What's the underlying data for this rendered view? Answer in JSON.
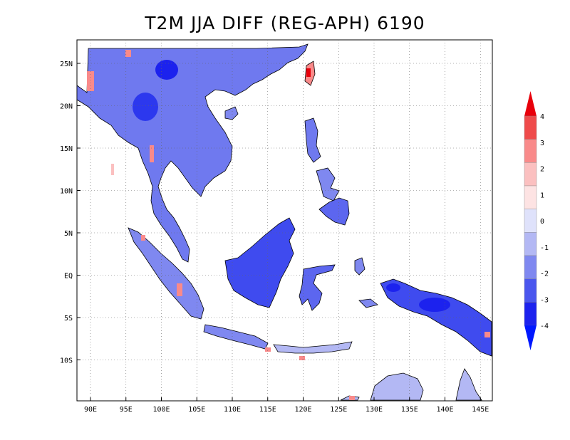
{
  "title": "T2M JJA DIFF (REG-APH) 6190",
  "lon_labels": [
    "90E",
    "95E",
    "100E",
    "105E",
    "110E",
    "115E",
    "120E",
    "125E",
    "130E",
    "135E",
    "140E",
    "145E"
  ],
  "lat_labels": [
    "25N",
    "20N",
    "15N",
    "10N",
    "5N",
    "EQ",
    "5S",
    "10S"
  ],
  "colorbar": {
    "labels": [
      "4",
      "3",
      "2",
      "1",
      "0",
      "-1",
      "-2",
      "-3",
      "-4"
    ],
    "colors": [
      "#e8000b",
      "#ef4b4b",
      "#f98a8a",
      "#fbc0c0",
      "#fde3e3",
      "#dfe2fb",
      "#b3b8f4",
      "#7f88f0",
      "#4a56ee",
      "#1c22ee",
      "#0018ff"
    ]
  },
  "colors": {
    "ocean": "#ffffff",
    "land_cool": "#7f88f0",
    "land_cold": "#2c38ee",
    "land_light": "#b3b8f4",
    "land_warm": "#f98a8a",
    "land_hot": "#e8000b"
  }
}
